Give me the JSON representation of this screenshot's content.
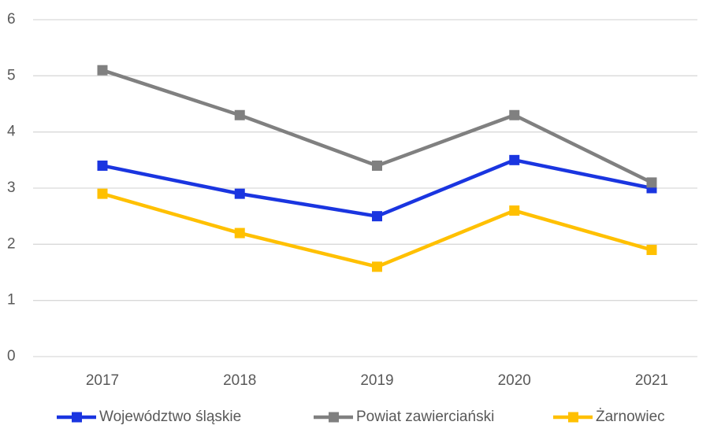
{
  "chart_data": {
    "type": "line",
    "categories": [
      "2017",
      "2018",
      "2019",
      "2020",
      "2021"
    ],
    "series": [
      {
        "name": "Województwo śląskie",
        "color": "#1a35e0",
        "values": [
          3.4,
          2.9,
          2.5,
          3.5,
          3.0
        ]
      },
      {
        "name": "Powiat zawierciański",
        "color": "#808080",
        "values": [
          5.1,
          4.3,
          3.4,
          4.3,
          3.1
        ]
      },
      {
        "name": "Żarnowiec",
        "color": "#ffc000",
        "values": [
          2.9,
          2.2,
          1.6,
          2.6,
          1.9
        ]
      }
    ],
    "ylim": [
      0,
      6
    ],
    "yticks": [
      0,
      1,
      2,
      3,
      4,
      5,
      6
    ],
    "grid": true,
    "legend": "bottom"
  }
}
